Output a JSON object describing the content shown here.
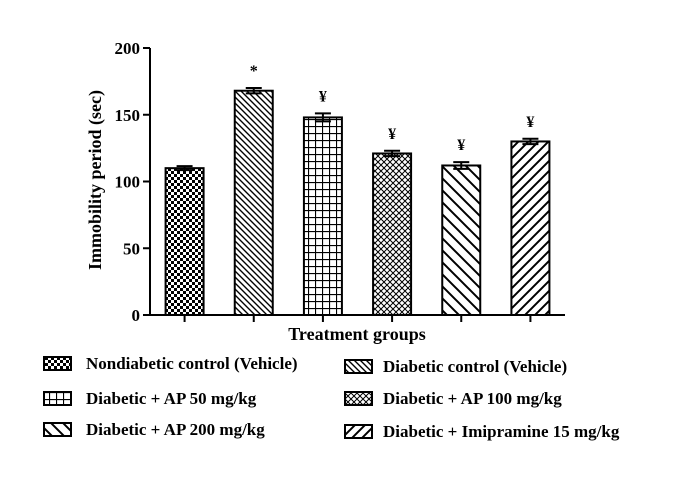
{
  "chart_data": {
    "type": "bar",
    "xlabel": "Treatment groups",
    "ylabel": "Immobility period (sec)",
    "ylim": [
      0,
      200
    ],
    "yticks": [
      0,
      50,
      100,
      150,
      200
    ],
    "grid": false,
    "legend_placement": "bottom",
    "categories": [
      "Nondiabetic control  (Vehicle)",
      "Diabetic control  (Vehicle)",
      "Diabetic + AP 50 mg/kg",
      "Diabetic + AP 100 mg/kg",
      "Diabetic + AP 200 mg/kg",
      "Diabetic + Imipramine 15 mg/kg"
    ],
    "values": [
      110,
      168,
      148,
      121,
      112,
      130
    ],
    "errors": [
      1.5,
      2,
      3,
      2,
      2.5,
      2
    ],
    "significance": [
      "",
      "*",
      "¥",
      "¥",
      "¥",
      "¥"
    ],
    "patterns": [
      "checker",
      "diag-down",
      "grid",
      "diamond",
      "diag-down-wide",
      "diag-up"
    ]
  }
}
